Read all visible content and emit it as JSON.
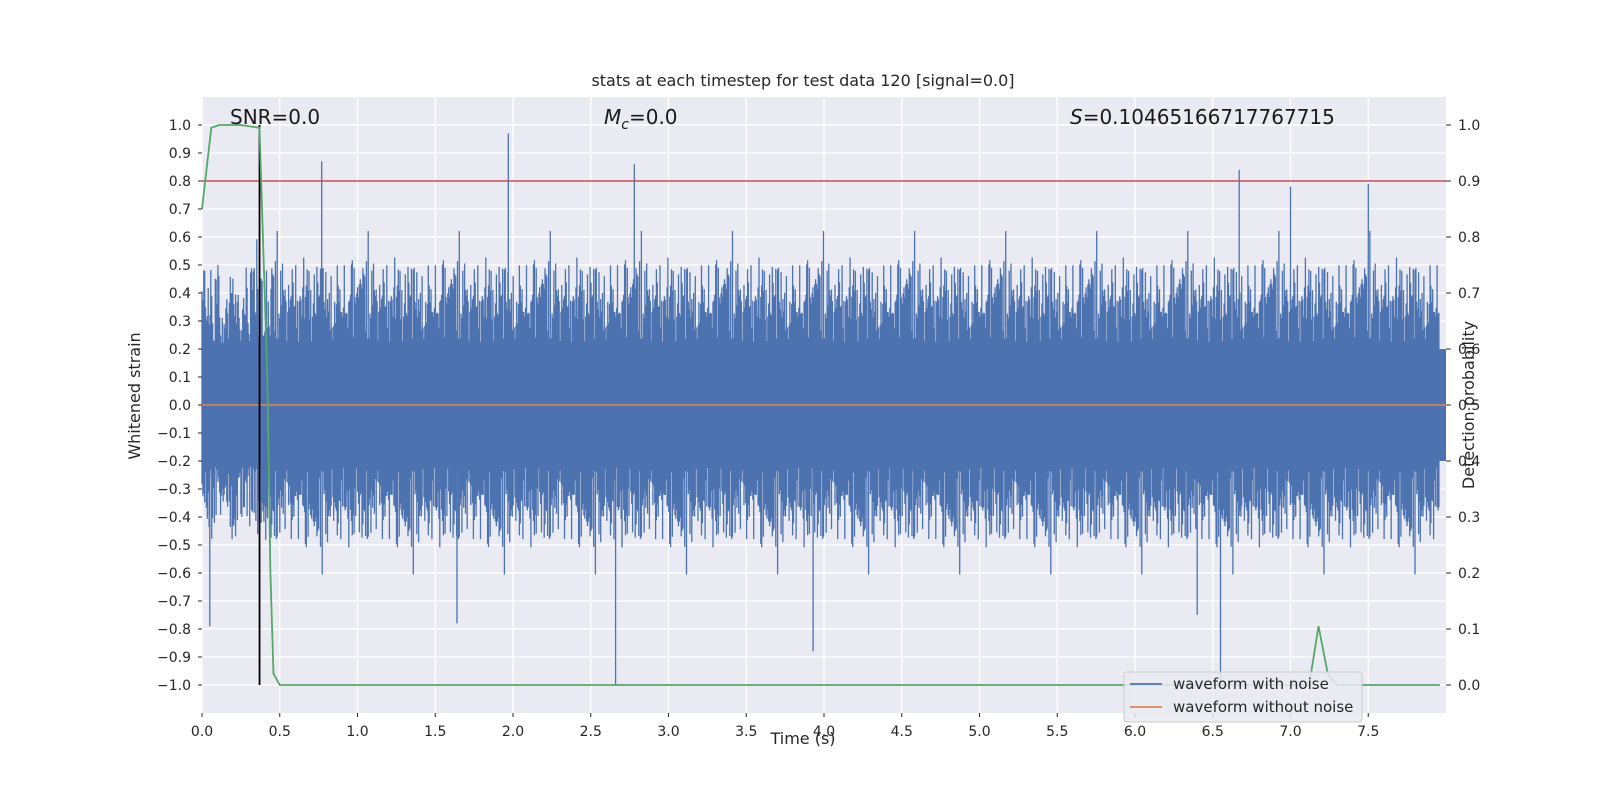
{
  "chart_data": {
    "type": "line",
    "title": "stats at each timestep for test data 120 [signal=0.0]",
    "xlabel": "Time (s)",
    "ylabel": "Whitened strain",
    "y2label": "Detection probability",
    "xlim": [
      0.0,
      8.0
    ],
    "ylim": [
      -1.1,
      1.1
    ],
    "y2lim": [
      -0.05,
      1.05
    ],
    "x_ticks": [
      0.0,
      0.5,
      1.0,
      1.5,
      2.0,
      2.5,
      3.0,
      3.5,
      4.0,
      4.5,
      5.0,
      5.5,
      6.0,
      6.5,
      7.0,
      7.5
    ],
    "x_tick_labels": [
      "0.0",
      "0.5",
      "1.0",
      "1.5",
      "2.0",
      "2.5",
      "3.0",
      "3.5",
      "4.0",
      "4.5",
      "5.0",
      "5.5",
      "6.0",
      "6.5",
      "7.0",
      "7.5"
    ],
    "y_ticks": [
      1.0,
      0.9,
      0.8,
      0.7,
      0.6,
      0.5,
      0.4,
      0.3,
      0.2,
      0.1,
      0.0,
      -0.1,
      -0.2,
      -0.3,
      -0.4,
      -0.5,
      -0.6,
      -0.7,
      -0.8,
      -0.9,
      -1.0
    ],
    "y_tick_labels": [
      "1.0",
      "0.9",
      "0.8",
      "0.7",
      "0.6",
      "0.5",
      "0.4",
      "0.3",
      "0.2",
      "0.1",
      "0.0",
      "−0.1",
      "−0.2",
      "−0.3",
      "−0.4",
      "−0.5",
      "−0.6",
      "−0.7",
      "−0.8",
      "−0.9",
      "−1.0"
    ],
    "y2_ticks": [
      1.0,
      0.9,
      0.8,
      0.7,
      0.6,
      0.5,
      0.4,
      0.3,
      0.2,
      0.1,
      0.0
    ],
    "y2_tick_labels": [
      "1.0",
      "0.9",
      "0.8",
      "0.7",
      "0.6",
      "0.5",
      "0.4",
      "0.3",
      "0.2",
      "0.1",
      "0.0"
    ],
    "annotations": {
      "snr": "SNR=0.0",
      "mc_symbol": "M",
      "mc_sub": "c",
      "mc_value": "=0.0",
      "s_symbol": "S",
      "s_value": "=0.10465166717767715"
    },
    "series": [
      {
        "name": "waveform with noise",
        "color": "#4c72b0",
        "description": "dense whitened strain noise spanning roughly -0.65 to 0.65",
        "spikes": [
          [
            0.77,
            0.87
          ],
          [
            1.97,
            0.97
          ],
          [
            2.78,
            0.86
          ],
          [
            6.67,
            0.84
          ],
          [
            7.0,
            0.78
          ],
          [
            7.5,
            0.79
          ],
          [
            0.05,
            -0.79
          ],
          [
            1.64,
            -0.78
          ],
          [
            2.66,
            -1.0
          ],
          [
            3.93,
            -0.88
          ],
          [
            6.55,
            -1.0
          ],
          [
            6.4,
            -0.75
          ]
        ]
      },
      {
        "name": "waveform without noise",
        "color": "#dd8452",
        "description": "flat at 0.0"
      },
      {
        "name": "detection probability",
        "color": "#55a868",
        "axis": "y2",
        "x": [
          0.0,
          0.06,
          0.11,
          0.25,
          0.37,
          0.42,
          0.44,
          0.46,
          0.5,
          7.12,
          7.18,
          7.24,
          7.3,
          7.96
        ],
        "y": [
          0.85,
          0.995,
          1.0,
          1.0,
          0.995,
          0.55,
          0.2,
          0.02,
          0.0,
          0.0,
          0.105,
          0.02,
          0.0,
          0.0
        ]
      }
    ],
    "threshold": {
      "value": 0.9,
      "axis": "y2",
      "color": "#c44e52"
    },
    "marker_time": {
      "x": 0.37,
      "color": "#000000"
    },
    "legend": {
      "position": "lower-right",
      "entries": [
        {
          "label": "waveform with noise",
          "color": "#4c72b0"
        },
        {
          "label": "waveform without noise",
          "color": "#dd8452"
        }
      ]
    },
    "grid": true,
    "background": "#eaeaf2"
  }
}
